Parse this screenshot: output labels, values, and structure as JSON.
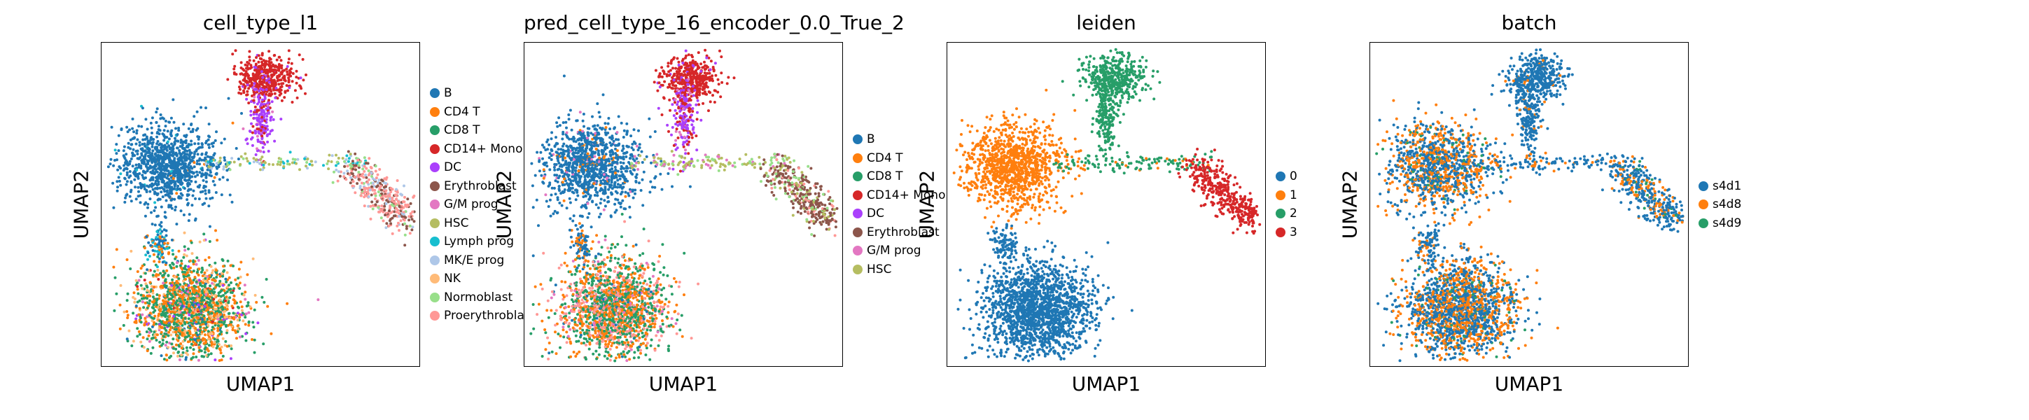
{
  "palette": {
    "blue": "#1f77b4",
    "orange": "#ff7f0e",
    "green": "#279e68",
    "red": "#d62728",
    "purple": "#aa40fc",
    "brown": "#8c564b",
    "pink": "#e377c2",
    "olive": "#b5bd61",
    "cyan": "#17becf",
    "lightblue": "#aec7e8",
    "peach": "#ffbb78",
    "lightgreen": "#98df8a",
    "lightred": "#ff9896"
  },
  "chart_data": [
    {
      "type": "scatter",
      "title": "cell_type_l1",
      "xlabel": "UMAP1",
      "ylabel": "UMAP2",
      "legend_placement": "right",
      "categories": [
        {
          "label": "B",
          "color": "#1f77b4"
        },
        {
          "label": "CD4 T",
          "color": "#ff7f0e"
        },
        {
          "label": "CD8 T",
          "color": "#279e68"
        },
        {
          "label": "CD14+ Mono",
          "color": "#d62728"
        },
        {
          "label": "DC",
          "color": "#aa40fc"
        },
        {
          "label": "Erythroblast",
          "color": "#8c564b"
        },
        {
          "label": "G/M prog",
          "color": "#e377c2"
        },
        {
          "label": "HSC",
          "color": "#b5bd61"
        },
        {
          "label": "Lymph prog",
          "color": "#17becf"
        },
        {
          "label": "MK/E prog",
          "color": "#aec7e8"
        },
        {
          "label": "NK",
          "color": "#ffbb78"
        },
        {
          "label": "Normoblast",
          "color": "#98df8a"
        },
        {
          "label": "Proerythroblast",
          "color": "#ff9896"
        }
      ]
    },
    {
      "type": "scatter",
      "title": "pred_cell_type_16_encoder_0.0_True_2",
      "xlabel": "UMAP1",
      "ylabel": "UMAP2",
      "legend_placement": "right",
      "categories": [
        {
          "label": "B",
          "color": "#1f77b4"
        },
        {
          "label": "CD4 T",
          "color": "#ff7f0e"
        },
        {
          "label": "CD8 T",
          "color": "#279e68"
        },
        {
          "label": "CD14+ Mono",
          "color": "#d62728"
        },
        {
          "label": "DC",
          "color": "#aa40fc"
        },
        {
          "label": "Erythroblast",
          "color": "#8c564b"
        },
        {
          "label": "G/M prog",
          "color": "#e377c2"
        },
        {
          "label": "HSC",
          "color": "#b5bd61"
        }
      ]
    },
    {
      "type": "scatter",
      "title": "leiden",
      "xlabel": "UMAP1",
      "ylabel": "UMAP2",
      "legend_placement": "right",
      "categories": [
        {
          "label": "0",
          "color": "#1f77b4"
        },
        {
          "label": "1",
          "color": "#ff7f0e"
        },
        {
          "label": "2",
          "color": "#279e68"
        },
        {
          "label": "3",
          "color": "#d62728"
        }
      ]
    },
    {
      "type": "scatter",
      "title": "batch",
      "xlabel": "UMAP1",
      "ylabel": "UMAP2",
      "legend_placement": "right",
      "categories": [
        {
          "label": "s4d1",
          "color": "#1f77b4"
        },
        {
          "label": "s4d8",
          "color": "#ff7f0e"
        },
        {
          "label": "s4d9",
          "color": "#279e68"
        }
      ]
    }
  ]
}
